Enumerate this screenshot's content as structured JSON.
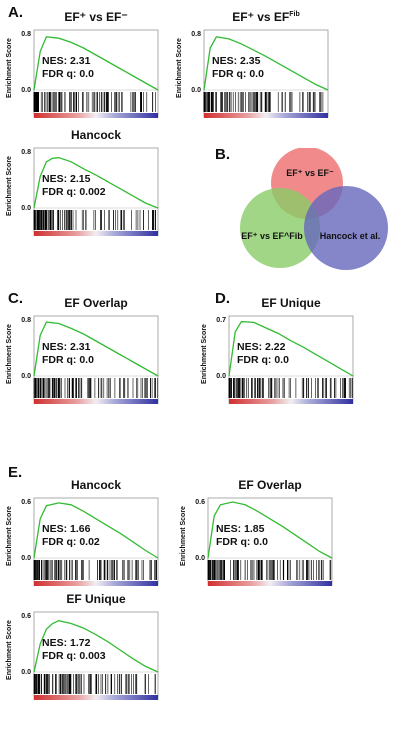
{
  "panels": {
    "A": "A.",
    "B": "B.",
    "C": "C.",
    "D": "D.",
    "E": "E."
  },
  "y_axis_label": "Enrichment Score",
  "venn": {
    "sets": [
      "EF⁺ vs EF⁻",
      "EF⁺ vs EF^Fib",
      "Hancock et al."
    ],
    "colors": [
      "#ee7777",
      "#88cc66",
      "#6666bb"
    ]
  },
  "chart_data": [
    {
      "id": "A1",
      "type": "line",
      "title": "EF⁺ vs EF⁻",
      "ylabel": "Enrichment Score",
      "yticks": [
        "0.8",
        "0.0"
      ],
      "ylim": [
        0,
        0.8
      ],
      "annotations": [
        "NES: 2.31",
        "FDR q: 0.0"
      ],
      "x": [
        0,
        0.05,
        0.1,
        0.2,
        0.3,
        0.4,
        0.5,
        0.6,
        0.7,
        0.8,
        0.9,
        1.0
      ],
      "y": [
        0.0,
        0.55,
        0.76,
        0.74,
        0.68,
        0.6,
        0.5,
        0.4,
        0.3,
        0.2,
        0.1,
        0.0
      ]
    },
    {
      "id": "A2",
      "type": "line",
      "title": "EF⁺ vs EF^Fib",
      "ylabel": "Enrichment Score",
      "yticks": [
        "0.8",
        "0.0"
      ],
      "ylim": [
        0,
        0.8
      ],
      "annotations": [
        "NES: 2.35",
        "FDR q: 0.0"
      ],
      "x": [
        0,
        0.05,
        0.1,
        0.2,
        0.3,
        0.4,
        0.5,
        0.6,
        0.7,
        0.8,
        0.9,
        1.0
      ],
      "y": [
        0.0,
        0.6,
        0.76,
        0.73,
        0.66,
        0.57,
        0.48,
        0.38,
        0.28,
        0.18,
        0.08,
        0.0
      ]
    },
    {
      "id": "A3",
      "type": "line",
      "title": "Hancock",
      "ylabel": "Enrichment Score",
      "yticks": [
        "0.8",
        "0.0"
      ],
      "ylim": [
        0,
        0.8
      ],
      "annotations": [
        "NES: 2.15",
        "FDR q: 0.002"
      ],
      "x": [
        0,
        0.05,
        0.1,
        0.15,
        0.2,
        0.3,
        0.4,
        0.5,
        0.6,
        0.7,
        0.8,
        0.9,
        1.0
      ],
      "y": [
        0.0,
        0.45,
        0.66,
        0.71,
        0.72,
        0.66,
        0.56,
        0.47,
        0.37,
        0.27,
        0.17,
        0.07,
        0.0
      ]
    },
    {
      "id": "C",
      "type": "line",
      "title": "EF Overlap",
      "ylabel": "Enrichment Score",
      "yticks": [
        "0.8",
        "0.0"
      ],
      "ylim": [
        0,
        0.8
      ],
      "annotations": [
        "NES: 2.31",
        "FDR q: 0.0"
      ],
      "x": [
        0,
        0.05,
        0.1,
        0.2,
        0.3,
        0.4,
        0.5,
        0.6,
        0.7,
        0.8,
        0.9,
        1.0
      ],
      "y": [
        0.0,
        0.58,
        0.77,
        0.75,
        0.68,
        0.6,
        0.5,
        0.4,
        0.3,
        0.2,
        0.1,
        0.0
      ]
    },
    {
      "id": "D",
      "type": "line",
      "title": "EF Unique",
      "ylabel": "Enrichment Score",
      "yticks": [
        "0.7",
        "0.0"
      ],
      "ylim": [
        0,
        0.7
      ],
      "annotations": [
        "NES: 2.22",
        "FDR q: 0.0"
      ],
      "x": [
        0,
        0.05,
        0.1,
        0.2,
        0.3,
        0.4,
        0.5,
        0.6,
        0.7,
        0.8,
        0.9,
        1.0
      ],
      "y": [
        0.0,
        0.55,
        0.68,
        0.67,
        0.6,
        0.53,
        0.44,
        0.36,
        0.27,
        0.18,
        0.09,
        0.0
      ]
    },
    {
      "id": "E1",
      "type": "line",
      "title": "Hancock",
      "ylabel": "Enrichment Score",
      "yticks": [
        "0.6",
        "0.0"
      ],
      "ylim": [
        0,
        0.6
      ],
      "annotations": [
        "NES: 1.66",
        "FDR q: 0.02"
      ],
      "x": [
        0,
        0.05,
        0.1,
        0.2,
        0.3,
        0.4,
        0.5,
        0.6,
        0.7,
        0.8,
        0.9,
        1.0
      ],
      "y": [
        0.0,
        0.42,
        0.56,
        0.59,
        0.57,
        0.5,
        0.42,
        0.34,
        0.26,
        0.17,
        0.08,
        0.0
      ]
    },
    {
      "id": "E2",
      "type": "line",
      "title": "EF Overlap",
      "ylabel": "Enrichment Score",
      "yticks": [
        "0.6",
        "0.0"
      ],
      "ylim": [
        0,
        0.6
      ],
      "annotations": [
        "NES: 1.85",
        "FDR q: 0.0"
      ],
      "x": [
        0,
        0.05,
        0.1,
        0.2,
        0.3,
        0.4,
        0.5,
        0.6,
        0.7,
        0.8,
        0.9,
        1.0
      ],
      "y": [
        0.0,
        0.45,
        0.57,
        0.6,
        0.57,
        0.5,
        0.42,
        0.34,
        0.25,
        0.16,
        0.07,
        0.0
      ]
    },
    {
      "id": "E3",
      "type": "line",
      "title": "EF Unique",
      "ylabel": "Enrichment Score",
      "yticks": [
        "0.6",
        "0.0"
      ],
      "ylim": [
        0,
        0.6
      ],
      "annotations": [
        "NES: 1.72",
        "FDR q: 0.003"
      ],
      "x": [
        0,
        0.05,
        0.1,
        0.15,
        0.2,
        0.3,
        0.4,
        0.5,
        0.6,
        0.7,
        0.8,
        0.9,
        1.0
      ],
      "y": [
        0.0,
        0.3,
        0.46,
        0.52,
        0.55,
        0.52,
        0.47,
        0.4,
        0.32,
        0.23,
        0.14,
        0.06,
        0.0
      ]
    }
  ]
}
